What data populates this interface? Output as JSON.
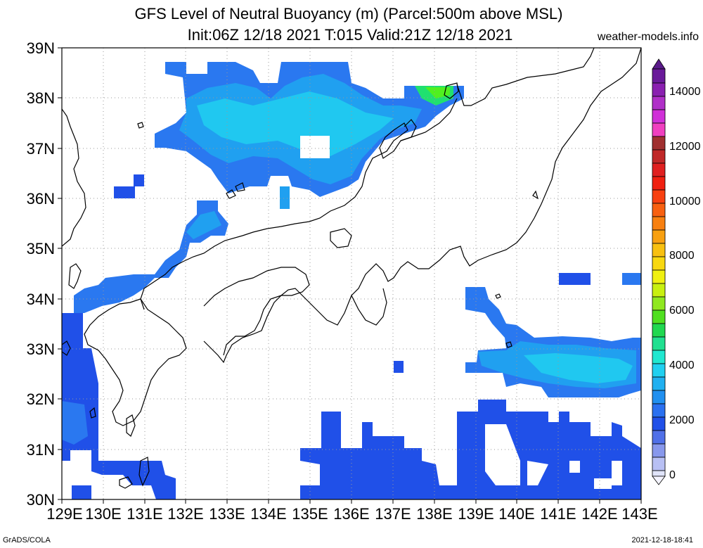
{
  "title_line1": "GFS Level of Neutral Buoyancy (m) (Parcel:500m above MSL)",
  "title_line2": "Init:06Z 12/18 2021 T:015 Valid:21Z 12/18 2021",
  "site": "weather-models.info",
  "credit_left": "GrADS/COLA",
  "credit_right": "2021-12-18-18:41",
  "lat_labels": [
    "39N",
    "38N",
    "37N",
    "36N",
    "35N",
    "34N",
    "33N",
    "32N",
    "31N",
    "30N"
  ],
  "lon_labels": [
    "129E",
    "130E",
    "131E",
    "132E",
    "133E",
    "134E",
    "135E",
    "136E",
    "137E",
    "138E",
    "139E",
    "140E",
    "141E",
    "142E",
    "143E"
  ],
  "colorbar_labels": [
    "14000",
    "12000",
    "10000",
    "8000",
    "6000",
    "4000",
    "2000",
    "0"
  ],
  "colors": {
    "c1500": "#2050e8",
    "c2000": "#2a78f0",
    "c2500": "#20a0f0",
    "c3000": "#20c8f0",
    "c3500": "#20e8e0",
    "c4000": "#20e070",
    "c4500": "#50f020"
  }
}
